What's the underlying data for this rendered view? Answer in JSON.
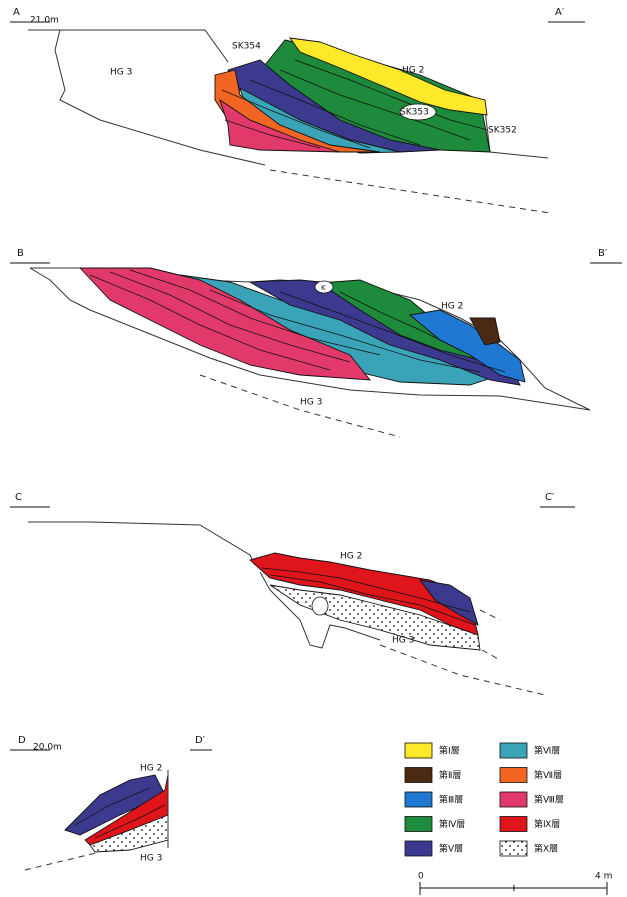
{
  "sections": [
    {
      "left": "A",
      "right": "A′",
      "elevation": "21.0m",
      "annotations": [
        "HG 3",
        "SK354",
        "HG 2",
        "SK353",
        "SK352"
      ]
    },
    {
      "left": "B",
      "right": "B′",
      "annotations": [
        "K",
        "HG 2",
        "HG 3"
      ]
    },
    {
      "left": "C",
      "right": "C′",
      "annotations": [
        "HG 2",
        "HG 3"
      ]
    },
    {
      "left": "D",
      "right": "D′",
      "elevation": "20.0m",
      "annotations": [
        "HG 2",
        "HG 3"
      ]
    }
  ],
  "legend": [
    {
      "label": "第Ⅰ層",
      "color": "#fde829"
    },
    {
      "label": "第Ⅱ層",
      "color": "#4a2a12"
    },
    {
      "label": "第Ⅲ層",
      "color": "#1f78d1"
    },
    {
      "label": "第Ⅳ層",
      "color": "#1e8a3c"
    },
    {
      "label": "第Ⅴ層",
      "color": "#3c3a8e"
    },
    {
      "label": "第Ⅵ層",
      "color": "#3aa3b8"
    },
    {
      "label": "第Ⅶ層",
      "color": "#f26522"
    },
    {
      "label": "第Ⅷ層",
      "color": "#e2396b"
    },
    {
      "label": "第Ⅸ層",
      "color": "#e0141b"
    },
    {
      "label": "第Ⅹ層",
      "color": "#ffffff"
    }
  ],
  "scale": {
    "start": "0",
    "end": "4 m"
  }
}
